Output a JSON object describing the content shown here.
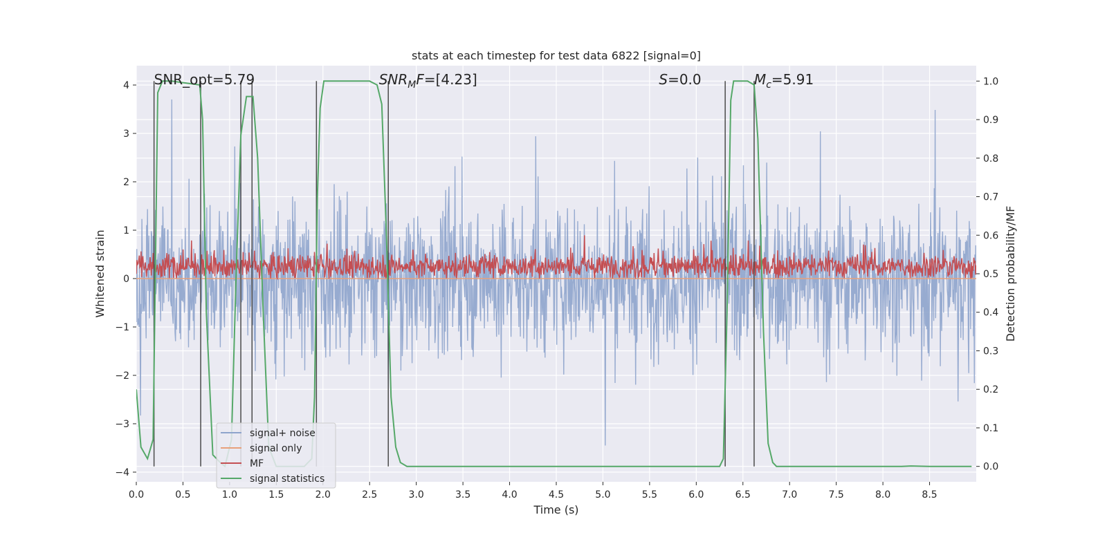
{
  "chart_data": {
    "type": "line",
    "title": "stats at each timestep for test data 6822 [signal=0]",
    "xlabel": "Time (s)",
    "ylabel": "Whitened strain",
    "y2label": "Detection probability/MF",
    "xlim": [
      0.0,
      9.0
    ],
    "ylim": [
      -4.2,
      4.4
    ],
    "y2lim": [
      -0.04,
      1.04
    ],
    "xticks": [
      "0.0",
      "0.5",
      "1.0",
      "1.5",
      "2.0",
      "2.5",
      "3.0",
      "3.5",
      "4.0",
      "4.5",
      "5.0",
      "5.5",
      "6.0",
      "6.5",
      "7.0",
      "7.5",
      "8.0",
      "8.5"
    ],
    "xtick_values": [
      0.0,
      0.5,
      1.0,
      1.5,
      2.0,
      2.5,
      3.0,
      3.5,
      4.0,
      4.5,
      5.0,
      5.5,
      6.0,
      6.5,
      7.0,
      7.5,
      8.0,
      8.5
    ],
    "yticks": [
      "4",
      "3",
      "2",
      "1",
      "0",
      "−1",
      "−2",
      "−3",
      "−4"
    ],
    "ytick_values": [
      4,
      3,
      2,
      1,
      0,
      -1,
      -2,
      -3,
      -4
    ],
    "y2ticks": [
      "1.0",
      "0.9",
      "0.8",
      "0.7",
      "0.6",
      "0.5",
      "0.4",
      "0.3",
      "0.2",
      "0.1",
      "0.0"
    ],
    "y2tick_values": [
      1.0,
      0.9,
      0.8,
      0.7,
      0.6,
      0.5,
      0.4,
      0.3,
      0.2,
      0.1,
      0.0
    ],
    "annotations": {
      "snr_opt": "SNR_opt=5.79",
      "snr_mf_italic": "SNR",
      "snr_mf_sub": "M",
      "snr_mf_italic2": "F",
      "snr_mf_value": "=[4.23]",
      "s_italic": "S",
      "s_value": "=0.0",
      "mc_italic": "M",
      "mc_sub": "c",
      "mc_value": "=5.91"
    },
    "legend": {
      "position": "lower-left",
      "entries": [
        {
          "label": "signal+ noise",
          "color": "#8ea4cc"
        },
        {
          "label": "signal only",
          "color": "#e8a07a"
        },
        {
          "label": "MF",
          "color": "#c44e52"
        },
        {
          "label": "signal statistics",
          "color": "#55a868"
        }
      ]
    },
    "noise": {
      "mean": 0.0,
      "envelope_min": -3.7,
      "envelope_max": 3.8,
      "typical_range": [
        -1.4,
        1.7
      ],
      "color": "#8ea4cc"
    },
    "mf": {
      "mean": 0.25,
      "min": 0.0,
      "max": 0.95,
      "color": "#c44e52"
    },
    "signal_only": {
      "value": 0.0,
      "color": "#e8a07a"
    },
    "vertical_lines_x": [
      0.19,
      0.69,
      1.12,
      1.24,
      1.93,
      2.7,
      6.31,
      6.62
    ],
    "series": [
      {
        "name": "signal statistics",
        "axis": "right",
        "color": "#55a868",
        "x": [
          0.0,
          0.05,
          0.12,
          0.18,
          0.23,
          0.28,
          0.33,
          0.38,
          0.68,
          0.71,
          0.75,
          0.82,
          0.86,
          0.9,
          0.95,
          1.02,
          1.07,
          1.12,
          1.18,
          1.25,
          1.3,
          1.36,
          1.42,
          1.5,
          1.6,
          1.7,
          1.8,
          1.88,
          1.91,
          1.94,
          1.97,
          2.01,
          2.05,
          2.5,
          2.58,
          2.63,
          2.68,
          2.73,
          2.78,
          2.83,
          2.9,
          3.0,
          4.0,
          5.0,
          6.0,
          6.15,
          6.25,
          6.29,
          6.33,
          6.37,
          6.4,
          6.45,
          6.55,
          6.62,
          6.66,
          6.72,
          6.77,
          6.82,
          6.86,
          7.0,
          7.5,
          8.0,
          8.2,
          8.3,
          8.5,
          8.95
        ],
        "y": [
          0.2,
          0.05,
          0.02,
          0.07,
          0.97,
          1.0,
          1.0,
          1.0,
          0.99,
          0.9,
          0.4,
          0.03,
          0.02,
          0.01,
          0.0,
          0.07,
          0.5,
          0.86,
          0.96,
          0.96,
          0.8,
          0.4,
          0.05,
          0.0,
          0.0,
          0.0,
          0.0,
          0.02,
          0.18,
          0.7,
          0.93,
          1.0,
          1.0,
          1.0,
          0.99,
          0.94,
          0.6,
          0.18,
          0.05,
          0.01,
          0.0,
          0.0,
          0.0,
          0.0,
          0.0,
          0.0,
          0.0,
          0.02,
          0.4,
          0.95,
          1.0,
          1.0,
          1.0,
          0.99,
          0.85,
          0.35,
          0.06,
          0.01,
          0.0,
          0.0,
          0.0,
          0.0,
          0.0,
          0.001,
          0.0,
          0.0
        ]
      }
    ]
  }
}
